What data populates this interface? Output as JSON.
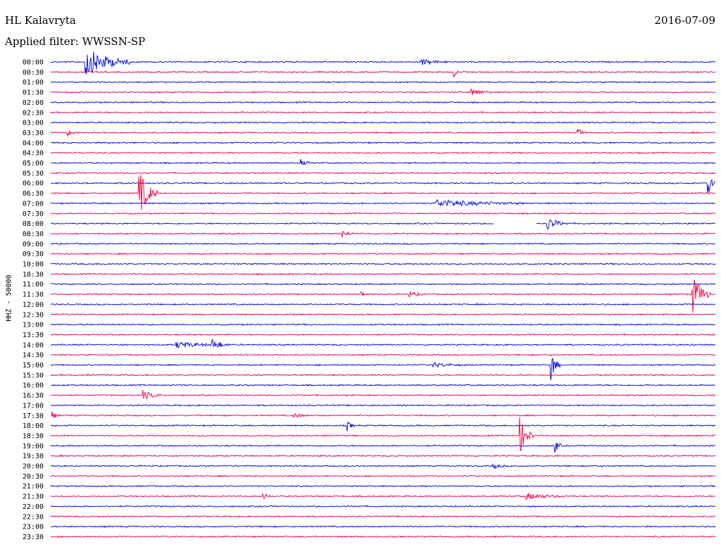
{
  "header": {
    "station": "HL Kalavryta",
    "date": "2016-07-09",
    "filter": "Applied filter: WWSSN-SP",
    "ylabel": "HHZ - 50000"
  },
  "colors": {
    "odd": "#0000dd",
    "even": "#ee0044"
  },
  "chart_data": {
    "type": "line",
    "subtype": "helicorder",
    "row_labels": [
      "00:00",
      "00:30",
      "01:00",
      "01:30",
      "02:00",
      "02:30",
      "03:00",
      "03:30",
      "04:00",
      "04:30",
      "05:00",
      "05:30",
      "06:00",
      "06:30",
      "07:00",
      "07:30",
      "08:00",
      "08:30",
      "09:00",
      "09:30",
      "10:00",
      "10:30",
      "11:00",
      "11:30",
      "12:00",
      "12:30",
      "13:00",
      "13:30",
      "14:00",
      "14:30",
      "15:00",
      "15:30",
      "16:00",
      "16:30",
      "17:00",
      "17:30",
      "18:00",
      "18:30",
      "19:00",
      "19:30",
      "20:00",
      "20:30",
      "21:00",
      "21:30",
      "22:00",
      "22:30",
      "23:00",
      "23:30"
    ],
    "row_minutes": 30,
    "events": [
      {
        "row": 0,
        "minute": 1.6,
        "amp": 1.4,
        "dur": 2.0
      },
      {
        "row": 0,
        "minute": 16.7,
        "amp": 0.3,
        "dur": 1.2
      },
      {
        "row": 1,
        "minute": 18.2,
        "amp": 0.5,
        "dur": 0.2
      },
      {
        "row": 3,
        "minute": 19.0,
        "amp": 0.35,
        "dur": 1.0
      },
      {
        "row": 7,
        "minute": 23.8,
        "amp": 0.45,
        "dur": 0.3
      },
      {
        "row": 7,
        "minute": 0.8,
        "amp": 0.3,
        "dur": 0.3
      },
      {
        "row": 10,
        "minute": 11.3,
        "amp": 0.3,
        "dur": 0.4
      },
      {
        "row": 12,
        "minute": 29.7,
        "amp": 0.9,
        "dur": 0.5
      },
      {
        "row": 13,
        "minute": 4.0,
        "amp": 2.2,
        "dur": 0.8
      },
      {
        "row": 14,
        "minute": 17.4,
        "amp": 0.35,
        "dur": 4.0
      },
      {
        "row": 16,
        "minute": 22.4,
        "amp": 0.65,
        "dur": 0.9
      },
      {
        "row": 17,
        "minute": 13.2,
        "amp": 0.3,
        "dur": 0.5
      },
      {
        "row": 23,
        "minute": 29.0,
        "amp": 1.8,
        "dur": 0.8
      },
      {
        "row": 23,
        "minute": 16.2,
        "amp": 0.3,
        "dur": 0.6
      },
      {
        "row": 23,
        "minute": 14.0,
        "amp": 0.3,
        "dur": 0.3
      },
      {
        "row": 28,
        "minute": 5.7,
        "amp": 0.3,
        "dur": 2.0
      },
      {
        "row": 28,
        "minute": 7.3,
        "amp": 0.45,
        "dur": 0.8
      },
      {
        "row": 30,
        "minute": 22.6,
        "amp": 1.3,
        "dur": 0.4
      },
      {
        "row": 30,
        "minute": 17.3,
        "amp": 0.2,
        "dur": 1.5
      },
      {
        "row": 33,
        "minute": 4.2,
        "amp": 0.45,
        "dur": 0.8
      },
      {
        "row": 35,
        "minute": 0.1,
        "amp": 0.3,
        "dur": 0.3
      },
      {
        "row": 35,
        "minute": 11.0,
        "amp": 0.25,
        "dur": 0.6
      },
      {
        "row": 36,
        "minute": 13.4,
        "amp": 0.45,
        "dur": 0.3
      },
      {
        "row": 37,
        "minute": 21.2,
        "amp": 1.6,
        "dur": 0.6
      },
      {
        "row": 38,
        "minute": 22.8,
        "amp": 0.5,
        "dur": 0.3
      },
      {
        "row": 40,
        "minute": 20.0,
        "amp": 0.25,
        "dur": 0.5
      },
      {
        "row": 43,
        "minute": 21.5,
        "amp": 0.3,
        "dur": 1.8
      },
      {
        "row": 43,
        "minute": 9.6,
        "amp": 0.3,
        "dur": 0.4
      }
    ],
    "gaps": [
      {
        "row": 16,
        "start_minute": 20.0,
        "end_minute": 21.9
      }
    ]
  }
}
